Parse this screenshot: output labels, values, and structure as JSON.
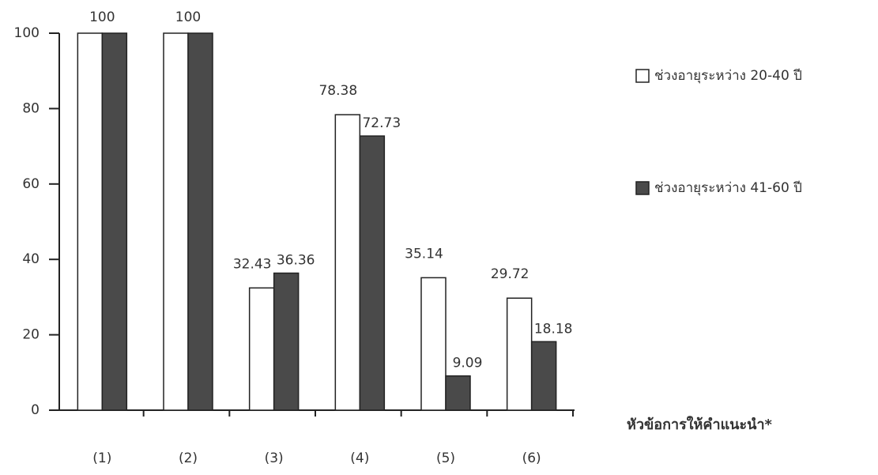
{
  "chart_data": {
    "type": "bar",
    "x_label": "หัวข้อการให้คำแนะนำ*",
    "categories": [
      "(1)",
      "(2)",
      "(3)",
      "(4)",
      "(5)",
      "(6)"
    ],
    "series": [
      {
        "name": "ช่วงอายุระหว่าง 20-40 ปี",
        "color": "#ffffff",
        "values": [
          100,
          100,
          32.43,
          78.38,
          35.14,
          29.72
        ]
      },
      {
        "name": "ช่วงอายุระหว่าง 41-60 ปี",
        "color": "#4a4a4a",
        "values": [
          100,
          100,
          36.36,
          72.73,
          9.09,
          18.18
        ],
        "value_labels": [
          null,
          null,
          "36.36",
          "72.73",
          "9.09",
          "18.18"
        ]
      }
    ],
    "ylim": [
      0,
      100
    ],
    "yticks": [
      0,
      20,
      40,
      60,
      80,
      100
    ]
  }
}
